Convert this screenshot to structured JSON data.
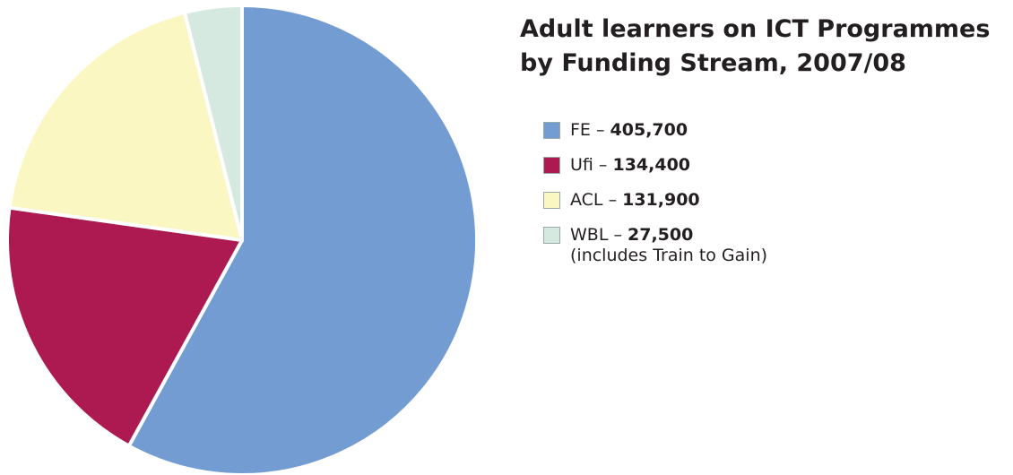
{
  "chart_data": {
    "type": "pie",
    "title": "Adult learners on ICT Programmes by Funding Stream, 2007/08",
    "categories": [
      "FE",
      "Ufi",
      "ACL",
      "WBL"
    ],
    "values": [
      405700,
      134400,
      131900,
      27500
    ],
    "value_labels": [
      "405,700",
      "134,400",
      "131,900",
      "27,500"
    ],
    "colors": [
      "#739dd2",
      "#ad1a51",
      "#faf7c3",
      "#d5e9e1"
    ],
    "separator": "–",
    "annotation": "(includes Train to Gain)"
  }
}
